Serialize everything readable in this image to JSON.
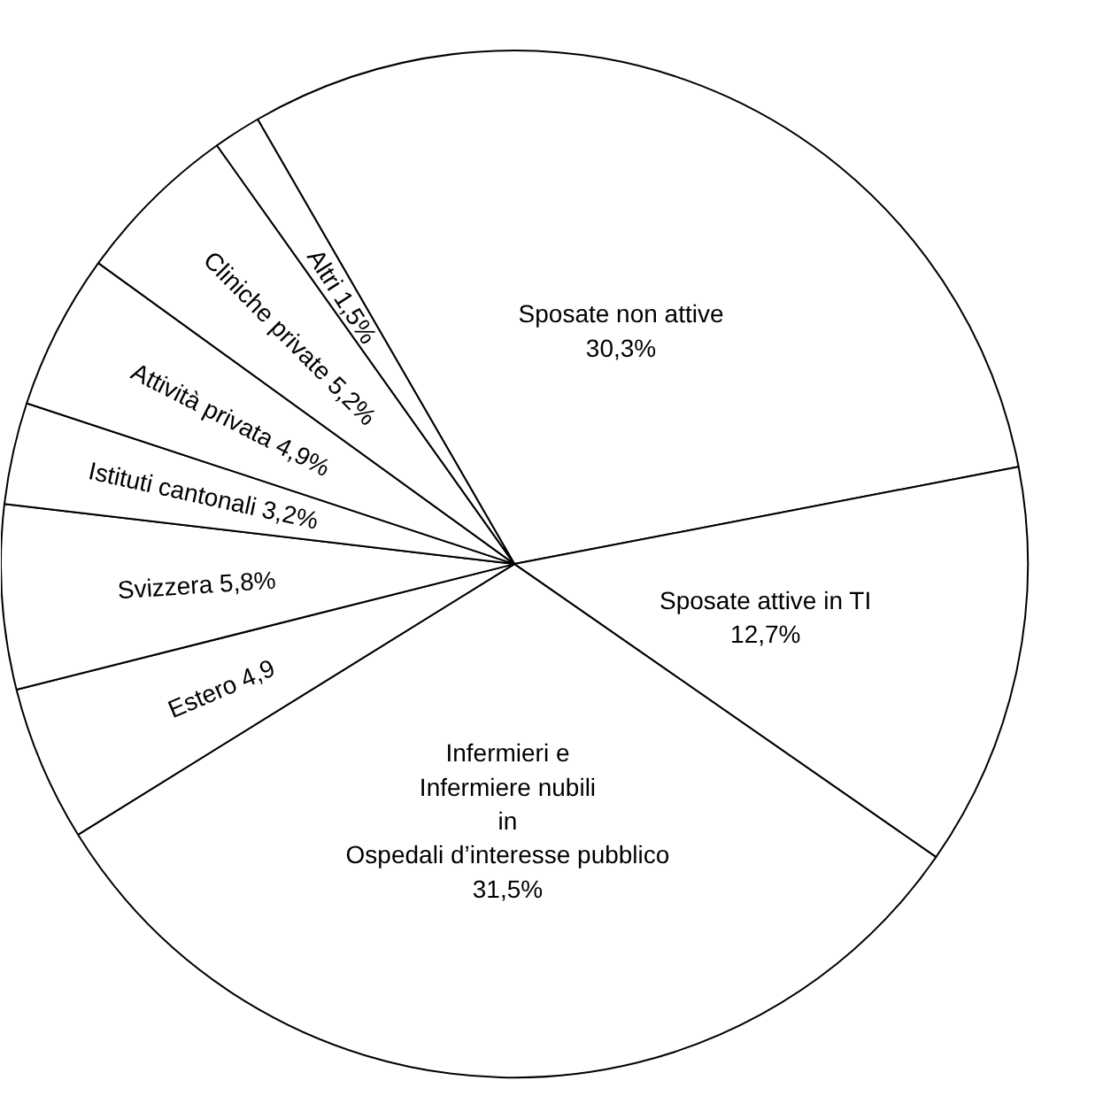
{
  "chart_data": {
    "type": "pie",
    "categories": [
      "Sposate non attive",
      "Sposate attive in TI",
      "Infermieri e\nInfermiere nubili\nin\nOspedali d’interesse pubblico",
      "Estero",
      "Svizzera",
      "Istituti cantonali",
      "Attività privata",
      "Cliniche private",
      "Altri"
    ],
    "values": [
      30.3,
      12.7,
      31.5,
      4.9,
      5.8,
      3.2,
      4.9,
      5.2,
      1.5
    ],
    "value_labels": [
      "30,3%",
      "12,7%",
      "31,5%",
      "4,9",
      "5,8%",
      "3,2%",
      "4,9%",
      "5,2%",
      "1,5%"
    ],
    "colors": [
      "#ffffff",
      "#ffffff",
      "#ffffff",
      "#ffffff",
      "#ffffff",
      "#ffffff",
      "#ffffff",
      "#ffffff",
      "#ffffff"
    ]
  }
}
